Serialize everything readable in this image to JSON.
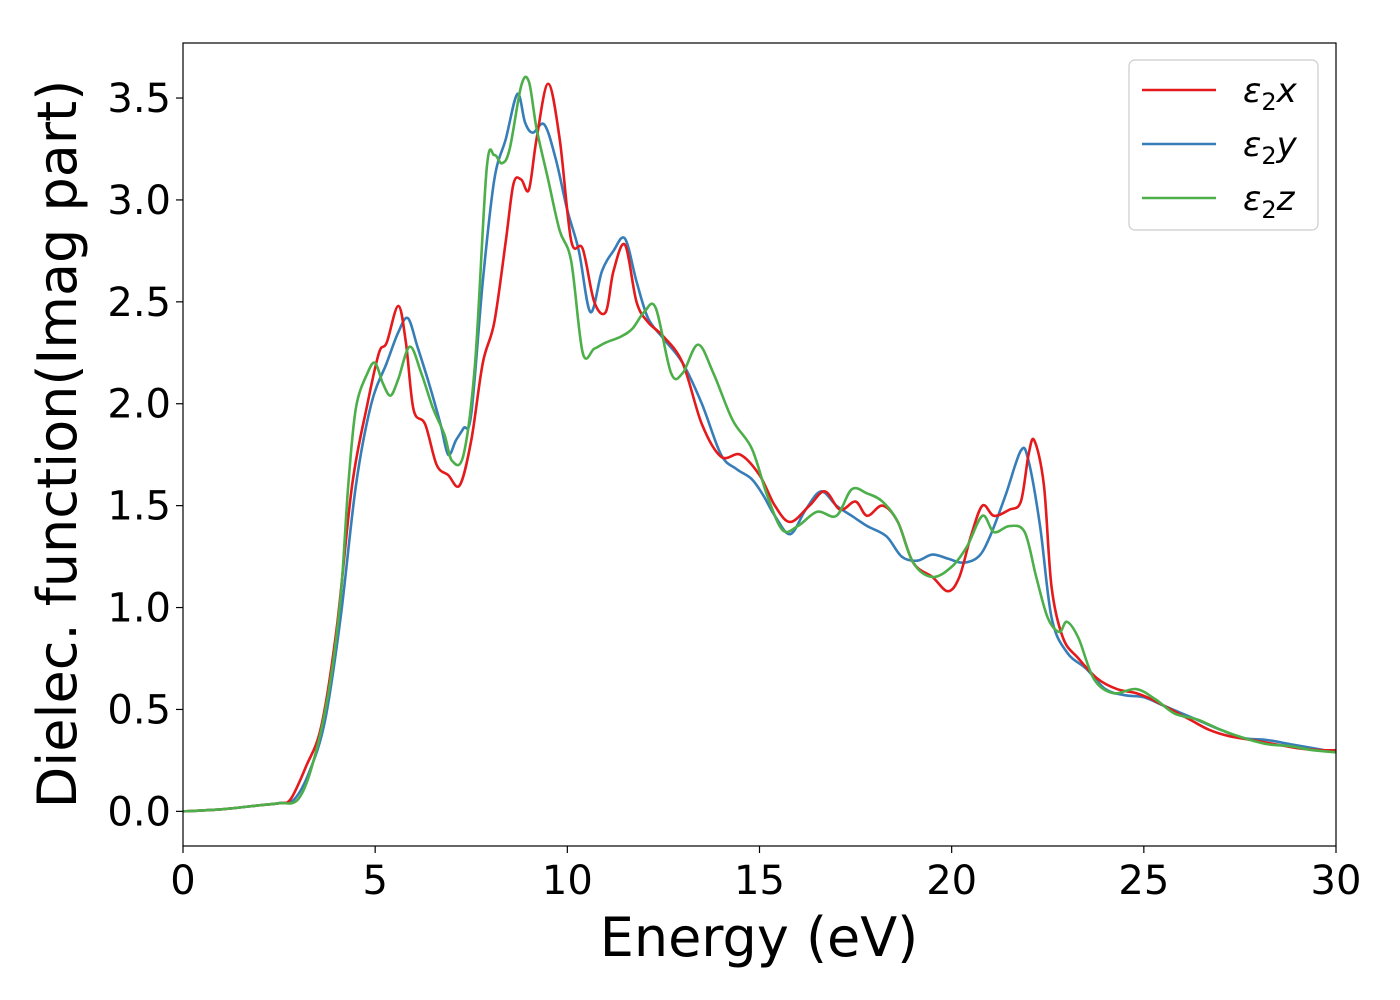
{
  "chart_data": {
    "type": "line",
    "title": "",
    "xlabel": "Energy (eV)",
    "ylabel": "Dielec. function(Imag part)",
    "xlim": [
      0,
      30
    ],
    "ylim": [
      -0.17,
      3.77
    ],
    "xticks": [
      "0",
      "5",
      "10",
      "15",
      "20",
      "25",
      "30"
    ],
    "yticks": [
      "0.0",
      "0.5",
      "1.0",
      "1.5",
      "2.0",
      "2.5",
      "3.0",
      "3.5"
    ],
    "grid": false,
    "legend_position": "top-right",
    "series": [
      {
        "name": "ε2x",
        "color": "#e41a1c",
        "points": [
          [
            0,
            0
          ],
          [
            1,
            0.01
          ],
          [
            2,
            0.03
          ],
          [
            2.5,
            0.04
          ],
          [
            2.8,
            0.06
          ],
          [
            3.2,
            0.22
          ],
          [
            3.6,
            0.42
          ],
          [
            4.0,
            0.9
          ],
          [
            4.4,
            1.6
          ],
          [
            4.8,
            2.0
          ],
          [
            5.1,
            2.25
          ],
          [
            5.3,
            2.3
          ],
          [
            5.6,
            2.48
          ],
          [
            5.8,
            2.3
          ],
          [
            6.0,
            1.97
          ],
          [
            6.3,
            1.9
          ],
          [
            6.6,
            1.7
          ],
          [
            6.9,
            1.65
          ],
          [
            7.2,
            1.6
          ],
          [
            7.5,
            1.82
          ],
          [
            7.8,
            2.2
          ],
          [
            8.1,
            2.4
          ],
          [
            8.4,
            2.8
          ],
          [
            8.6,
            3.08
          ],
          [
            8.8,
            3.1
          ],
          [
            9.0,
            3.05
          ],
          [
            9.2,
            3.3
          ],
          [
            9.5,
            3.57
          ],
          [
            9.8,
            3.3
          ],
          [
            10.1,
            2.8
          ],
          [
            10.4,
            2.76
          ],
          [
            10.7,
            2.5
          ],
          [
            11.0,
            2.45
          ],
          [
            11.2,
            2.65
          ],
          [
            11.5,
            2.78
          ],
          [
            11.8,
            2.5
          ],
          [
            12.1,
            2.4
          ],
          [
            12.5,
            2.33
          ],
          [
            13.0,
            2.2
          ],
          [
            13.5,
            1.9
          ],
          [
            14.0,
            1.74
          ],
          [
            14.5,
            1.75
          ],
          [
            15.0,
            1.65
          ],
          [
            15.4,
            1.5
          ],
          [
            15.8,
            1.42
          ],
          [
            16.3,
            1.5
          ],
          [
            16.7,
            1.57
          ],
          [
            17.1,
            1.48
          ],
          [
            17.5,
            1.52
          ],
          [
            17.8,
            1.45
          ],
          [
            18.2,
            1.5
          ],
          [
            18.6,
            1.42
          ],
          [
            19.0,
            1.22
          ],
          [
            19.5,
            1.15
          ],
          [
            19.9,
            1.08
          ],
          [
            20.2,
            1.15
          ],
          [
            20.5,
            1.35
          ],
          [
            20.8,
            1.5
          ],
          [
            21.1,
            1.45
          ],
          [
            21.5,
            1.48
          ],
          [
            21.8,
            1.52
          ],
          [
            22.0,
            1.75
          ],
          [
            22.15,
            1.82
          ],
          [
            22.4,
            1.6
          ],
          [
            22.6,
            1.1
          ],
          [
            22.9,
            0.85
          ],
          [
            23.3,
            0.75
          ],
          [
            23.8,
            0.65
          ],
          [
            24.3,
            0.6
          ],
          [
            24.8,
            0.58
          ],
          [
            25.2,
            0.55
          ],
          [
            25.7,
            0.5
          ],
          [
            26.2,
            0.45
          ],
          [
            26.7,
            0.4
          ],
          [
            27.2,
            0.37
          ],
          [
            27.8,
            0.35
          ],
          [
            28.4,
            0.33
          ],
          [
            29.0,
            0.31
          ],
          [
            29.6,
            0.3
          ],
          [
            30.0,
            0.3
          ]
        ]
      },
      {
        "name": "ε2y",
        "color": "#377eb8",
        "points": [
          [
            0,
            0
          ],
          [
            1,
            0.01
          ],
          [
            2,
            0.03
          ],
          [
            2.5,
            0.04
          ],
          [
            2.9,
            0.06
          ],
          [
            3.3,
            0.2
          ],
          [
            3.7,
            0.45
          ],
          [
            4.1,
            0.95
          ],
          [
            4.5,
            1.6
          ],
          [
            4.9,
            2.0
          ],
          [
            5.3,
            2.2
          ],
          [
            5.6,
            2.35
          ],
          [
            5.85,
            2.42
          ],
          [
            6.1,
            2.28
          ],
          [
            6.4,
            2.1
          ],
          [
            6.7,
            1.9
          ],
          [
            6.9,
            1.75
          ],
          [
            7.1,
            1.82
          ],
          [
            7.3,
            1.88
          ],
          [
            7.5,
            1.95
          ],
          [
            7.8,
            2.6
          ],
          [
            8.1,
            3.1
          ],
          [
            8.4,
            3.3
          ],
          [
            8.7,
            3.52
          ],
          [
            8.9,
            3.38
          ],
          [
            9.1,
            3.33
          ],
          [
            9.4,
            3.37
          ],
          [
            9.7,
            3.2
          ],
          [
            10.0,
            2.95
          ],
          [
            10.3,
            2.75
          ],
          [
            10.6,
            2.45
          ],
          [
            10.9,
            2.65
          ],
          [
            11.2,
            2.75
          ],
          [
            11.5,
            2.81
          ],
          [
            11.8,
            2.6
          ],
          [
            12.1,
            2.42
          ],
          [
            12.5,
            2.32
          ],
          [
            13.0,
            2.2
          ],
          [
            13.5,
            2.0
          ],
          [
            14.0,
            1.75
          ],
          [
            14.4,
            1.68
          ],
          [
            14.8,
            1.63
          ],
          [
            15.1,
            1.55
          ],
          [
            15.4,
            1.45
          ],
          [
            15.8,
            1.36
          ],
          [
            16.2,
            1.48
          ],
          [
            16.6,
            1.57
          ],
          [
            17.0,
            1.5
          ],
          [
            17.4,
            1.45
          ],
          [
            17.8,
            1.4
          ],
          [
            18.3,
            1.35
          ],
          [
            18.7,
            1.25
          ],
          [
            19.1,
            1.23
          ],
          [
            19.5,
            1.26
          ],
          [
            19.9,
            1.24
          ],
          [
            20.3,
            1.22
          ],
          [
            20.7,
            1.25
          ],
          [
            21.0,
            1.35
          ],
          [
            21.4,
            1.55
          ],
          [
            21.8,
            1.77
          ],
          [
            22.0,
            1.72
          ],
          [
            22.3,
            1.4
          ],
          [
            22.6,
            0.95
          ],
          [
            23.0,
            0.78
          ],
          [
            23.5,
            0.7
          ],
          [
            24.0,
            0.6
          ],
          [
            24.5,
            0.57
          ],
          [
            25.0,
            0.56
          ],
          [
            25.5,
            0.52
          ],
          [
            26.0,
            0.48
          ],
          [
            26.5,
            0.44
          ],
          [
            27.0,
            0.4
          ],
          [
            27.6,
            0.36
          ],
          [
            28.2,
            0.35
          ],
          [
            28.8,
            0.33
          ],
          [
            29.4,
            0.31
          ],
          [
            30.0,
            0.29
          ]
        ]
      },
      {
        "name": "ε2z",
        "color": "#4daf4a",
        "points": [
          [
            0,
            0
          ],
          [
            1,
            0.01
          ],
          [
            2,
            0.03
          ],
          [
            2.5,
            0.04
          ],
          [
            3.0,
            0.06
          ],
          [
            3.4,
            0.25
          ],
          [
            3.8,
            0.6
          ],
          [
            4.1,
            1.05
          ],
          [
            4.3,
            1.6
          ],
          [
            4.5,
            1.98
          ],
          [
            4.8,
            2.15
          ],
          [
            5.0,
            2.2
          ],
          [
            5.2,
            2.1
          ],
          [
            5.4,
            2.04
          ],
          [
            5.6,
            2.12
          ],
          [
            5.9,
            2.28
          ],
          [
            6.2,
            2.15
          ],
          [
            6.5,
            1.98
          ],
          [
            6.8,
            1.85
          ],
          [
            7.0,
            1.72
          ],
          [
            7.3,
            1.75
          ],
          [
            7.6,
            2.2
          ],
          [
            7.9,
            3.15
          ],
          [
            8.1,
            3.22
          ],
          [
            8.3,
            3.18
          ],
          [
            8.5,
            3.25
          ],
          [
            8.8,
            3.56
          ],
          [
            9.0,
            3.58
          ],
          [
            9.2,
            3.35
          ],
          [
            9.5,
            3.1
          ],
          [
            9.8,
            2.85
          ],
          [
            10.1,
            2.7
          ],
          [
            10.4,
            2.25
          ],
          [
            10.7,
            2.27
          ],
          [
            11.0,
            2.3
          ],
          [
            11.4,
            2.33
          ],
          [
            11.7,
            2.37
          ],
          [
            12.0,
            2.45
          ],
          [
            12.3,
            2.47
          ],
          [
            12.7,
            2.15
          ],
          [
            13.0,
            2.15
          ],
          [
            13.4,
            2.29
          ],
          [
            13.8,
            2.15
          ],
          [
            14.3,
            1.92
          ],
          [
            14.8,
            1.78
          ],
          [
            15.2,
            1.55
          ],
          [
            15.6,
            1.38
          ],
          [
            16.0,
            1.4
          ],
          [
            16.5,
            1.47
          ],
          [
            17.0,
            1.45
          ],
          [
            17.4,
            1.58
          ],
          [
            17.8,
            1.56
          ],
          [
            18.2,
            1.52
          ],
          [
            18.6,
            1.42
          ],
          [
            19.0,
            1.22
          ],
          [
            19.5,
            1.15
          ],
          [
            20.0,
            1.2
          ],
          [
            20.4,
            1.3
          ],
          [
            20.8,
            1.45
          ],
          [
            21.1,
            1.37
          ],
          [
            21.5,
            1.4
          ],
          [
            21.9,
            1.37
          ],
          [
            22.2,
            1.15
          ],
          [
            22.5,
            0.95
          ],
          [
            22.8,
            0.88
          ],
          [
            23.0,
            0.93
          ],
          [
            23.3,
            0.85
          ],
          [
            23.7,
            0.65
          ],
          [
            24.2,
            0.58
          ],
          [
            24.8,
            0.6
          ],
          [
            25.3,
            0.55
          ],
          [
            25.8,
            0.48
          ],
          [
            26.4,
            0.45
          ],
          [
            27.0,
            0.4
          ],
          [
            27.6,
            0.36
          ],
          [
            28.2,
            0.33
          ],
          [
            28.8,
            0.32
          ],
          [
            29.4,
            0.3
          ],
          [
            30.0,
            0.29
          ]
        ]
      }
    ]
  }
}
